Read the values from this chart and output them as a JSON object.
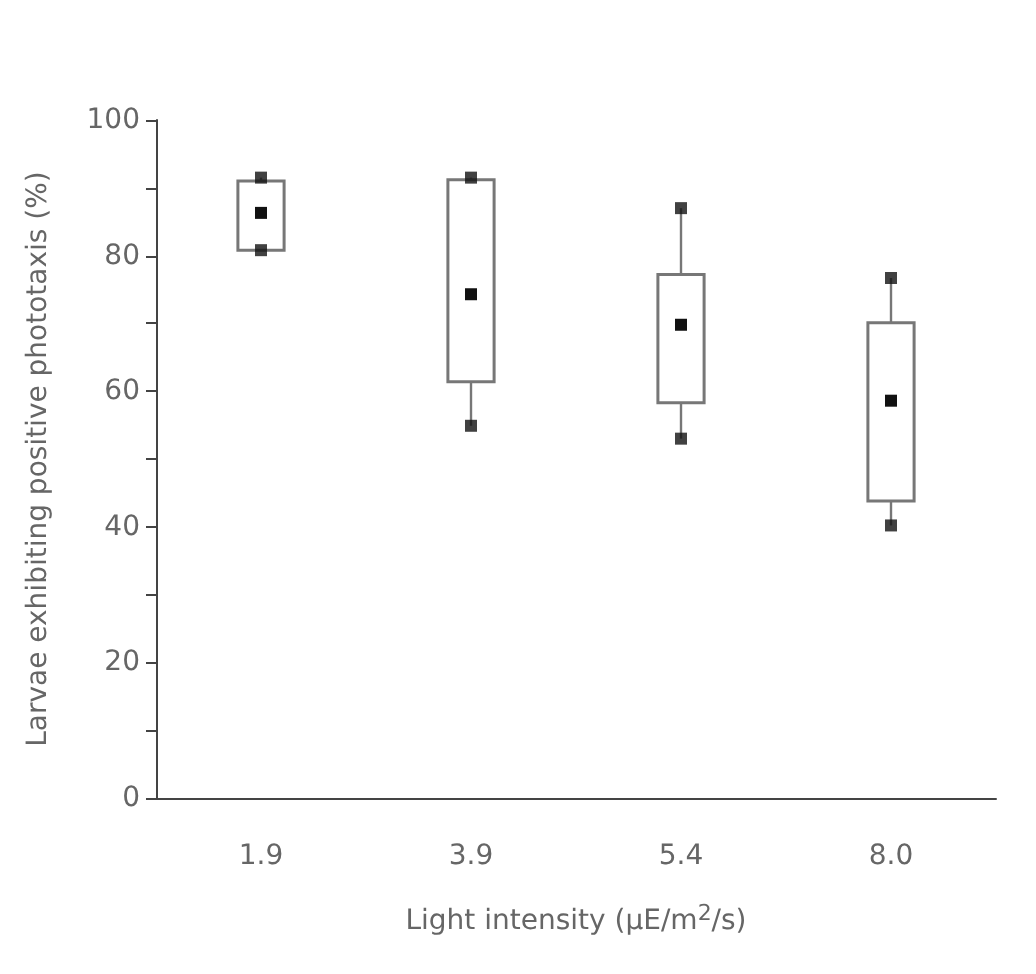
{
  "chart_data": {
    "type": "box",
    "xlabel": "Light intensity (μE/m$^{2}$/s)",
    "ylabel": "Larvae exhibiting positive phototaxis (%)",
    "categories": [
      "1.9",
      "3.9",
      "5.4",
      "8.0"
    ],
    "boxes": [
      {
        "low": 80.8,
        "q1": 80.8,
        "median": 86.3,
        "q3": 91.0,
        "high": 91.5
      },
      {
        "low": 54.9,
        "q1": 61.4,
        "median": 74.3,
        "q3": 91.2,
        "high": 91.5
      },
      {
        "low": 53.0,
        "q1": 58.3,
        "median": 69.8,
        "q3": 77.2,
        "high": 87.0
      },
      {
        "low": 40.2,
        "q1": 43.8,
        "median": 58.6,
        "q3": 70.1,
        "high": 76.7
      }
    ],
    "color": "#777777",
    "series": [
      {
        "type": "scatter",
        "color": "#111111",
        "marker": "square",
        "x": [
          "1.9",
          "1.9",
          "3.9",
          "3.9",
          "5.4",
          "5.4",
          "8.0",
          "8.0"
        ],
        "values": [
          91.5,
          80.8,
          91.5,
          54.9,
          87.0,
          53.0,
          76.7,
          40.2
        ]
      }
    ],
    "ylim": [
      0,
      100
    ],
    "yticks": [
      0,
      {
        "value": 10,
        "label": null
      },
      20,
      {
        "value": 30,
        "label": null
      },
      40,
      {
        "value": 50,
        "label": null
      },
      60,
      {
        "value": 70,
        "label": null
      },
      80,
      {
        "value": 90,
        "label": null
      },
      100
    ],
    "grid": false
  }
}
